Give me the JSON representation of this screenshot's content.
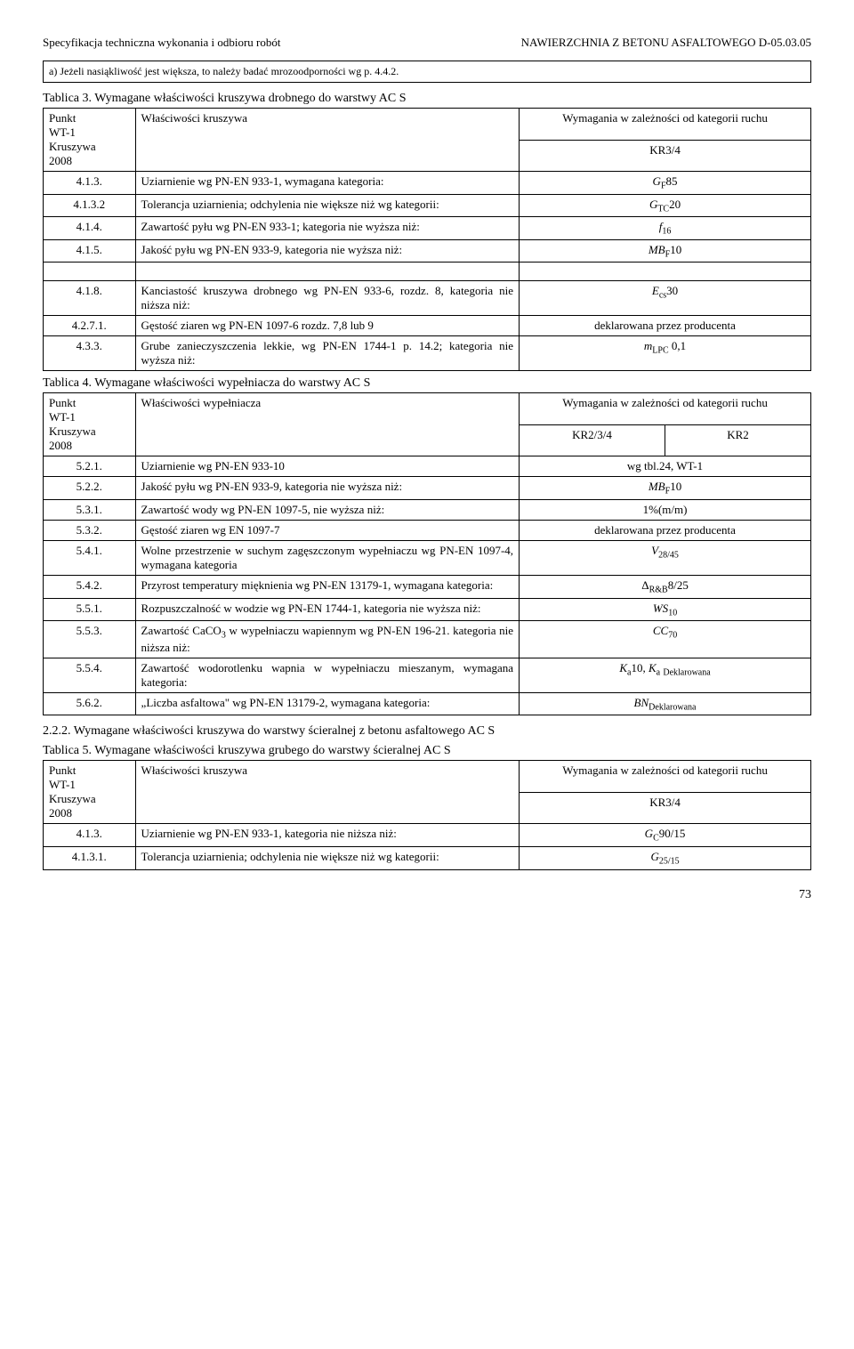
{
  "header": {
    "left": "Specyfikacja techniczna wykonania i odbioru robót",
    "right": "NAWIERZCHNIA Z BETONU ASFALTOWEGO D-05.03.05"
  },
  "note_box": "a) Jeżeli nasiąkliwość jest większa, to należy badać mrozoodporności wg p. 4.4.2.",
  "tab3": {
    "caption": "Tablica 3. Wymagane właściwości kruszywa drobnego do warstwy AC S",
    "h_punkt": "Punkt\nWT-1\nKruszywa\n2008",
    "h_prop": "Właściwości kruszywa",
    "h_req1": "Wymagania w zależności od kategorii ruchu",
    "h_req2": "KR3/4",
    "rows": [
      {
        "n": "4.1.3.",
        "p": "Uziarnienie wg PN-EN 933-1, wymagana kategoria:",
        "v": "GF85"
      },
      {
        "n": "4.1.3.2",
        "p": "Tolerancja uziarnienia; odchylenia nie większe niż wg kategorii:",
        "v": "GTC20"
      },
      {
        "n": "4.1.4.",
        "p": "Zawartość pyłu wg PN-EN 933-1; kategoria nie wyższa niż:",
        "v": "f16"
      },
      {
        "n": "4.1.5.",
        "p": "Jakość pyłu wg PN-EN 933-9, kategoria nie wyższa niż:",
        "v": "MBF10"
      },
      {
        "n": "4.1.8.",
        "p": "Kanciastość kruszywa drobnego wg PN-EN 933-6, rozdz. 8, kategoria nie niższa niż:",
        "v": "Ecs30"
      },
      {
        "n": "4.2.7.1.",
        "p": "Gęstość ziaren wg PN-EN 1097-6 rozdz. 7,8 lub 9",
        "v": "deklarowana przez producenta"
      },
      {
        "n": "4.3.3.",
        "p": "Grube zanieczyszczenia lekkie, wg PN-EN 1744-1 p. 14.2; kategoria nie wyższa niż:",
        "v": "mLPC 0,1"
      }
    ]
  },
  "tab4": {
    "caption": "Tablica 4. Wymagane właściwości wypełniacza do warstwy AC S",
    "h_punkt": "Punkt\nWT-1\nKruszywa\n2008",
    "h_prop": "Właściwości wypełniacza",
    "h_req1": "Wymagania w zależności od kategorii ruchu",
    "sub_left": "KR2/3/4",
    "sub_right": "KR2",
    "rows": [
      {
        "n": "5.2.1.",
        "p": "Uziarnienie wg PN-EN 933-10",
        "v": "wg tbl.24, WT-1"
      },
      {
        "n": "5.2.2.",
        "p": "Jakość pyłu wg PN-EN 933-9, kategoria nie wyższa niż:",
        "v": "MBF10"
      },
      {
        "n": "5.3.1.",
        "p": "Zawartość wody wg PN-EN 1097-5, nie wyższa niż:",
        "v": "1%(m/m)"
      },
      {
        "n": "5.3.2.",
        "p": "Gęstość ziaren wg EN 1097-7",
        "v": "deklarowana przez producenta"
      },
      {
        "n": "5.4.1.",
        "p": "Wolne przestrzenie w suchym zagęszczonym wypełniaczu wg PN-EN 1097-4, wymagana kategoria",
        "v": "V28/45"
      },
      {
        "n": "5.4.2.",
        "p": "Przyrost temperatury mięknienia wg PN-EN 13179-1, wymagana kategoria:",
        "v": "ΔR&B8/25"
      },
      {
        "n": "5.5.1.",
        "p": "Rozpuszczalność w wodzie wg PN-EN 1744-1, kategoria nie wyższa niż:",
        "v": "WS10"
      },
      {
        "n": "5.5.3.",
        "p": "Zawartość CaCO3 w wypełniaczu wapiennym wg PN-EN 196-21. kategoria nie niższa niż:",
        "v": "CC70"
      },
      {
        "n": "5.5.4.",
        "p": "Zawartość wodorotlenku wapnia w wypełniaczu mieszanym, wymagana kategoria:",
        "v": "Ka10, Ka Deklarowana"
      },
      {
        "n": "5.6.2.",
        "p": "„Liczba asfaltowa\" wg PN-EN 13179-2, wymagana kategoria:",
        "v": "BNDeklarowana"
      }
    ]
  },
  "section_2_2_2": "2.2.2.  Wymagane właściwości kruszywa do warstwy ścieralnej z betonu asfaltowego AC S",
  "tab5": {
    "caption": "Tablica 5. Wymagane właściwości kruszywa grubego do warstwy ścieralnej AC S",
    "h_punkt": "Punkt\nWT-1\nKruszywa\n2008",
    "h_prop": "Właściwości kruszywa",
    "h_req1": "Wymagania w zależności od kategorii ruchu",
    "h_req2": "KR3/4",
    "rows": [
      {
        "n": "4.1.3.",
        "p": "Uziarnienie wg PN-EN 933-1, kategoria nie niższa niż:",
        "v": "GC90/15"
      },
      {
        "n": "4.1.3.1.",
        "p": "Tolerancja uziarnienia; odchylenia nie większe niż wg kategorii:",
        "v": "G25/15"
      }
    ]
  },
  "page_number": "73"
}
